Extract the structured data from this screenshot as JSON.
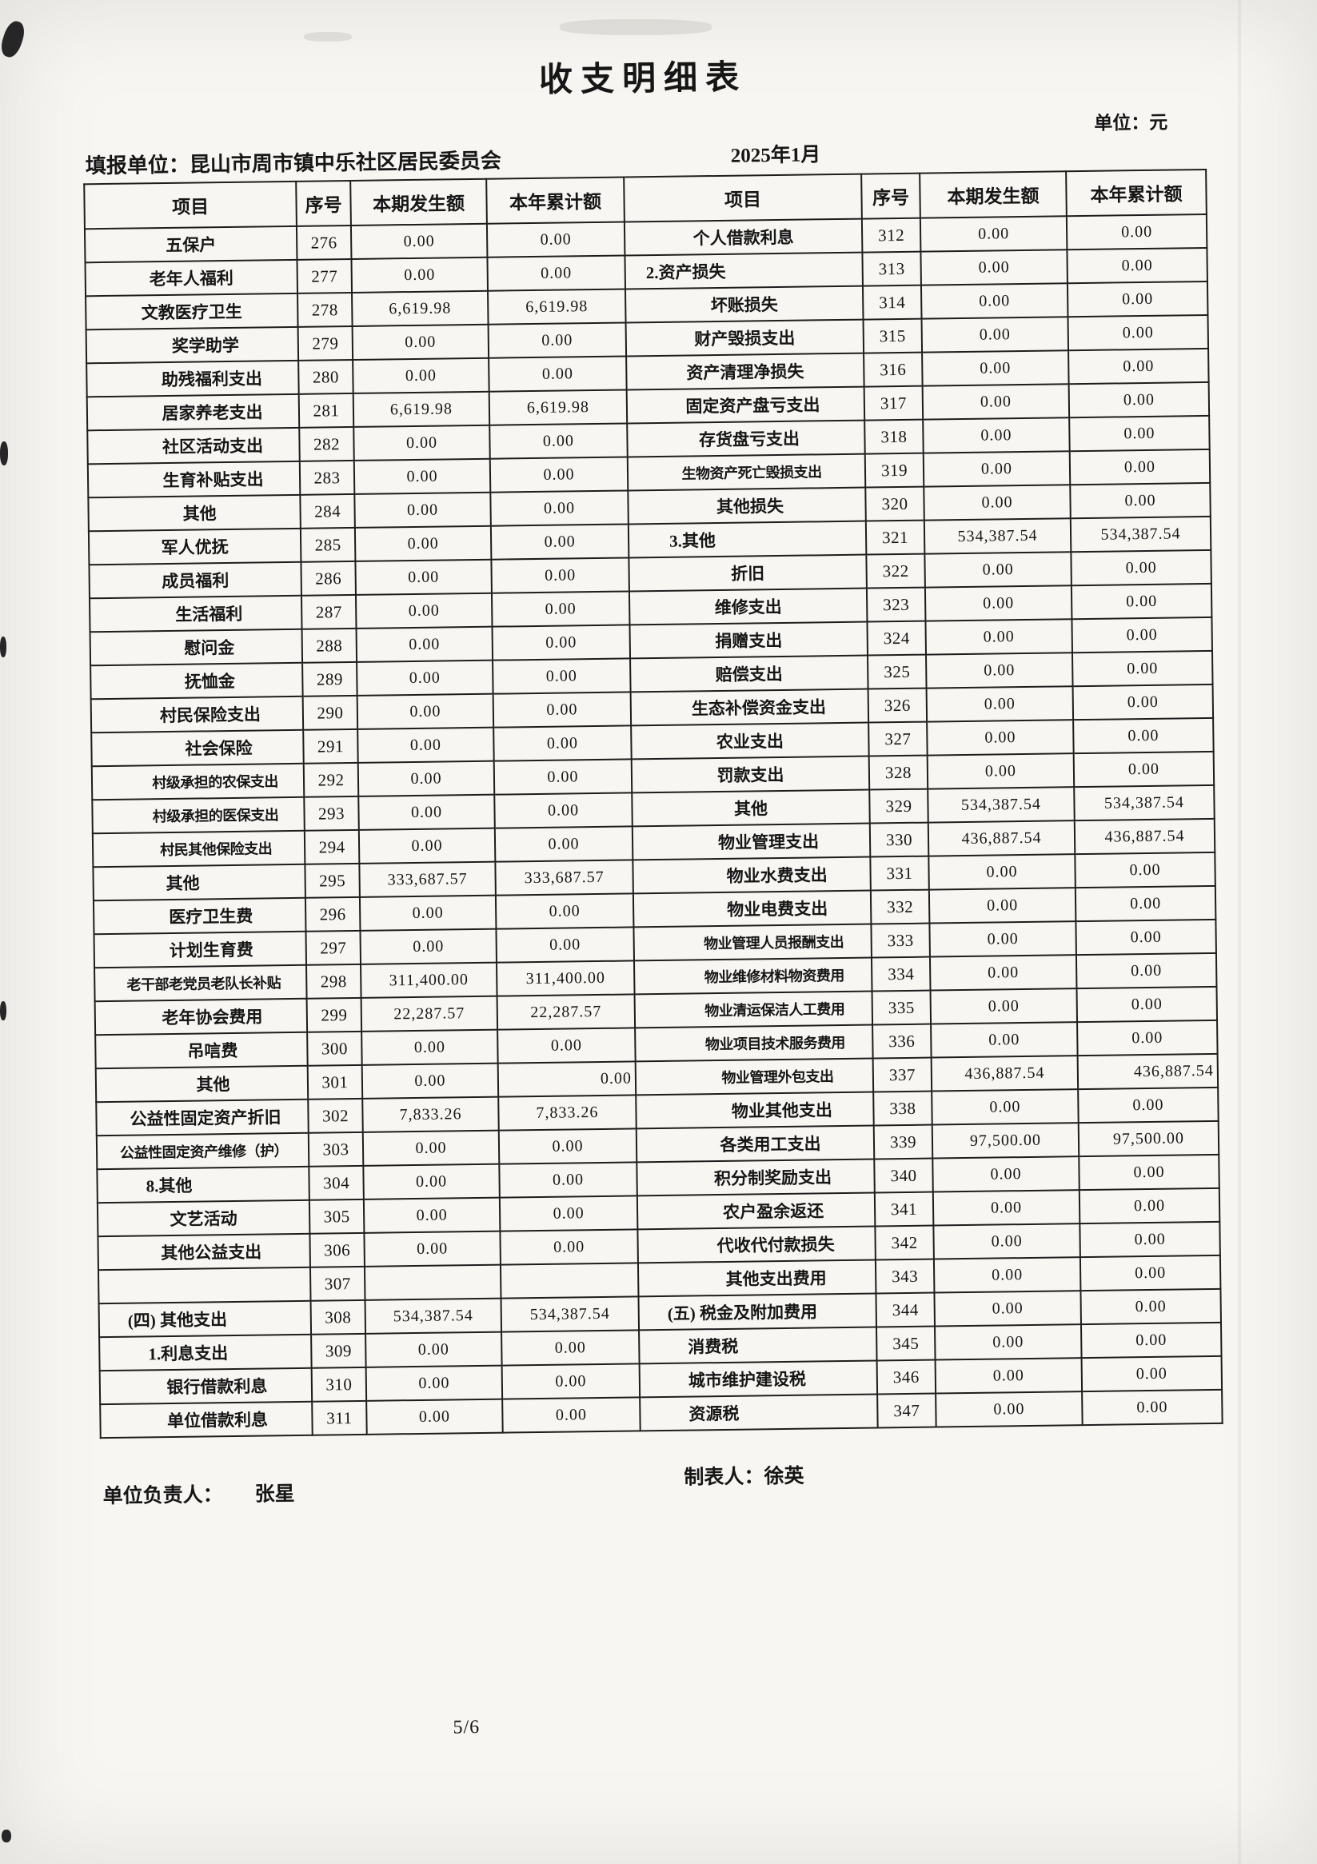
{
  "title": "收支明细表",
  "meta": {
    "reporting_unit_label": "填报单位：昆山市周市镇中乐社区居民委员会",
    "period": "2025年1月",
    "unit_label": "单位：元"
  },
  "table": {
    "headers": [
      "项目",
      "序号",
      "本期发生额",
      "本年累计额",
      "项目",
      "序号",
      "本期发生额",
      "本年累计额"
    ],
    "rows_left": [
      {
        "item": "五保户",
        "no": "276",
        "current": "0.00",
        "ytd": "0.00"
      },
      {
        "item": "老年人福利",
        "no": "277",
        "current": "0.00",
        "ytd": "0.00"
      },
      {
        "item": "文教医疗卫生",
        "no": "278",
        "current": "6,619.98",
        "ytd": "6,619.98"
      },
      {
        "item": "奖学助学",
        "no": "279",
        "current": "0.00",
        "ytd": "0.00",
        "pl": 35
      },
      {
        "item": "助残福利支出",
        "no": "280",
        "current": "0.00",
        "ytd": "0.00",
        "pl": 50
      },
      {
        "item": "居家养老支出",
        "no": "281",
        "current": "6,619.98",
        "ytd": "6,619.98",
        "pl": 50
      },
      {
        "item": "社区活动支出",
        "no": "282",
        "current": "0.00",
        "ytd": "0.00",
        "pl": 50
      },
      {
        "item": "生育补贴支出",
        "no": "283",
        "current": "0.00",
        "ytd": "0.00",
        "pl": 50
      },
      {
        "item": "其他",
        "no": "284",
        "current": "0.00",
        "ytd": "0.00",
        "pl": 15
      },
      {
        "item": "军人优抚",
        "no": "285",
        "current": "0.00",
        "ytd": "0.00"
      },
      {
        "item": "成员福利",
        "no": "286",
        "current": "0.00",
        "ytd": "0.00"
      },
      {
        "item": "生活福利",
        "no": "287",
        "current": "0.00",
        "ytd": "0.00",
        "pl": 35
      },
      {
        "item": "慰问金",
        "no": "288",
        "current": "0.00",
        "ytd": "0.00",
        "pl": 35
      },
      {
        "item": "抚恤金",
        "no": "289",
        "current": "0.00",
        "ytd": "0.00",
        "pl": 35
      },
      {
        "item": "村民保险支出",
        "no": "290",
        "current": "0.00",
        "ytd": "0.00",
        "pl": 35
      },
      {
        "item": "社会保险",
        "no": "291",
        "current": "0.00",
        "ytd": "0.00",
        "pl": 55
      },
      {
        "item": "村级承担的农保支出",
        "no": "292",
        "current": "0.00",
        "ytd": "0.00",
        "pl": 45,
        "small": true
      },
      {
        "item": "村级承担的医保支出",
        "no": "293",
        "current": "0.00",
        "ytd": "0.00",
        "pl": 45,
        "small": true
      },
      {
        "item": "村民其他保险支出",
        "no": "294",
        "current": "0.00",
        "ytd": "0.00",
        "pl": 45,
        "small": true
      },
      {
        "item": "其他",
        "no": "295",
        "current": "333,687.57",
        "ytd": "333,687.57",
        "align": "left",
        "pl": 90
      },
      {
        "item": "医疗卫生费",
        "no": "296",
        "current": "0.00",
        "ytd": "0.00",
        "pl": 30
      },
      {
        "item": "计划生育费",
        "no": "297",
        "current": "0.00",
        "ytd": "0.00",
        "pl": 30
      },
      {
        "item": "老干部老党员老队长补贴",
        "no": "298",
        "current": "311,400.00",
        "ytd": "311,400.00",
        "pl": 10,
        "small": true
      },
      {
        "item": "老年协会费用",
        "no": "299",
        "current": "22,287.57",
        "ytd": "22,287.57",
        "pl": 30
      },
      {
        "item": "吊唁费",
        "no": "300",
        "current": "0.00",
        "ytd": "0.00",
        "pl": 30
      },
      {
        "item": "其他",
        "no": "301",
        "current": "0.00",
        "ytd": "0.00",
        "pl": 30,
        "ytd_align": "right"
      },
      {
        "item": "公益性固定资产折旧",
        "no": "302",
        "current": "7,833.26",
        "ytd": "7,833.26",
        "pl": 10
      },
      {
        "item": "公益性固定资产维修（护）",
        "no": "303",
        "current": "0.00",
        "ytd": "0.00",
        "pl": 5,
        "small": true
      },
      {
        "item": "8.其他",
        "no": "304",
        "current": "0.00",
        "ytd": "0.00",
        "align": "left",
        "pl": 60
      },
      {
        "item": "文艺活动",
        "no": "305",
        "current": "0.00",
        "ytd": "0.00"
      },
      {
        "item": "其他公益支出",
        "no": "306",
        "current": "0.00",
        "ytd": "0.00",
        "pl": 20
      },
      {
        "item": "",
        "no": "307",
        "current": "",
        "ytd": ""
      },
      {
        "item": "(四) 其他支出",
        "no": "308",
        "current": "534,387.54",
        "ytd": "534,387.54",
        "align": "left",
        "pl": 35
      },
      {
        "item": "1.利息支出",
        "no": "309",
        "current": "0.00",
        "ytd": "0.00",
        "align": "left",
        "pl": 60
      },
      {
        "item": "银行借款利息",
        "no": "310",
        "current": "0.00",
        "ytd": "0.00",
        "pl": 30
      },
      {
        "item": "单位借款利息",
        "no": "311",
        "current": "0.00",
        "ytd": "0.00",
        "pl": 30
      }
    ],
    "rows_right": [
      {
        "item": "个人借款利息",
        "no": "312",
        "current": "0.00",
        "ytd": "0.00"
      },
      {
        "item": "2.资产损失",
        "no": "313",
        "current": "0.00",
        "ytd": "0.00",
        "align": "left",
        "pl": 25
      },
      {
        "item": "坏账损失",
        "no": "314",
        "current": "0.00",
        "ytd": "0.00"
      },
      {
        "item": "财产毁损支出",
        "no": "315",
        "current": "0.00",
        "ytd": "0.00"
      },
      {
        "item": "资产清理净损失",
        "no": "316",
        "current": "0.00",
        "ytd": "0.00"
      },
      {
        "item": "固定资产盘亏支出",
        "no": "317",
        "current": "0.00",
        "ytd": "0.00",
        "pl": 20
      },
      {
        "item": "存货盘亏支出",
        "no": "318",
        "current": "0.00",
        "ytd": "0.00",
        "pl": 10
      },
      {
        "item": "生物资产死亡毁损支出",
        "no": "319",
        "current": "0.00",
        "ytd": "0.00",
        "pl": 15,
        "small": true
      },
      {
        "item": "其他损失",
        "no": "320",
        "current": "0.00",
        "ytd": "0.00",
        "pl": 10
      },
      {
        "item": "3.其他",
        "no": "321",
        "current": "534,387.54",
        "ytd": "534,387.54",
        "align": "left",
        "pl": 50
      },
      {
        "item": "折旧",
        "no": "322",
        "current": "0.00",
        "ytd": "0.00"
      },
      {
        "item": "维修支出",
        "no": "323",
        "current": "0.00",
        "ytd": "0.00"
      },
      {
        "item": "捐赠支出",
        "no": "324",
        "current": "0.00",
        "ytd": "0.00"
      },
      {
        "item": "赔偿支出",
        "no": "325",
        "current": "0.00",
        "ytd": "0.00"
      },
      {
        "item": "生态补偿资金支出",
        "no": "326",
        "current": "0.00",
        "ytd": "0.00",
        "pl": 25
      },
      {
        "item": "农业支出",
        "no": "327",
        "current": "0.00",
        "ytd": "0.00"
      },
      {
        "item": "罚款支出",
        "no": "328",
        "current": "0.00",
        "ytd": "0.00"
      },
      {
        "item": "其他",
        "no": "329",
        "current": "534,387.54",
        "ytd": "534,387.54"
      },
      {
        "item": "物业管理支出",
        "no": "330",
        "current": "436,887.54",
        "ytd": "436,887.54",
        "pl": 45
      },
      {
        "item": "物业水费支出",
        "no": "331",
        "current": "0.00",
        "ytd": "0.00",
        "pl": 65
      },
      {
        "item": "物业电费支出",
        "no": "332",
        "current": "0.00",
        "ytd": "0.00",
        "pl": 65
      },
      {
        "item": "物业管理人员报酬支出",
        "no": "333",
        "current": "0.00",
        "ytd": "0.00",
        "pl": 55,
        "small": true
      },
      {
        "item": "物业维修材料物资费用",
        "no": "334",
        "current": "0.00",
        "ytd": "0.00",
        "pl": 55,
        "small": true
      },
      {
        "item": "物业清运保洁人工费用",
        "no": "335",
        "current": "0.00",
        "ytd": "0.00",
        "pl": 55,
        "small": true
      },
      {
        "item": "物业项目技术服务费用",
        "no": "336",
        "current": "0.00",
        "ytd": "0.00",
        "pl": 55,
        "small": true
      },
      {
        "item": "物业管理外包支出",
        "no": "337",
        "current": "436,887.54",
        "ytd": "436,887.54",
        "pl": 60,
        "small": true,
        "ytd_align": "right"
      },
      {
        "item": "物业其他支出",
        "no": "338",
        "current": "0.00",
        "ytd": "0.00",
        "pl": 70
      },
      {
        "item": "各类用工支出",
        "no": "339",
        "current": "97,500.00",
        "ytd": "97,500.00",
        "pl": 40
      },
      {
        "item": "积分制奖励支出",
        "no": "340",
        "current": "0.00",
        "ytd": "0.00",
        "pl": 45
      },
      {
        "item": "农户盈余返还",
        "no": "341",
        "current": "0.00",
        "ytd": "0.00",
        "pl": 45
      },
      {
        "item": "代收代付款损失",
        "no": "342",
        "current": "0.00",
        "ytd": "0.00",
        "pl": 50
      },
      {
        "item": "其他支出费用",
        "no": "343",
        "current": "0.00",
        "ytd": "0.00",
        "pl": 50
      },
      {
        "item": "(五) 税金及附加费用",
        "no": "344",
        "current": "0.00",
        "ytd": "0.00",
        "align": "left",
        "pl": 35
      },
      {
        "item": "消费税",
        "no": "345",
        "current": "0.00",
        "ytd": "0.00",
        "align": "left",
        "pl": 60
      },
      {
        "item": "城市维护建设税",
        "no": "346",
        "current": "0.00",
        "ytd": "0.00",
        "align": "left",
        "pl": 60
      },
      {
        "item": "资源税",
        "no": "347",
        "current": "0.00",
        "ytd": "0.00",
        "align": "left",
        "pl": 60
      }
    ]
  },
  "footer": {
    "responsible_label": "单位负责人：",
    "responsible_name": "张星",
    "preparer_label": "制表人：",
    "preparer_name": "徐英",
    "page": "5/6"
  }
}
